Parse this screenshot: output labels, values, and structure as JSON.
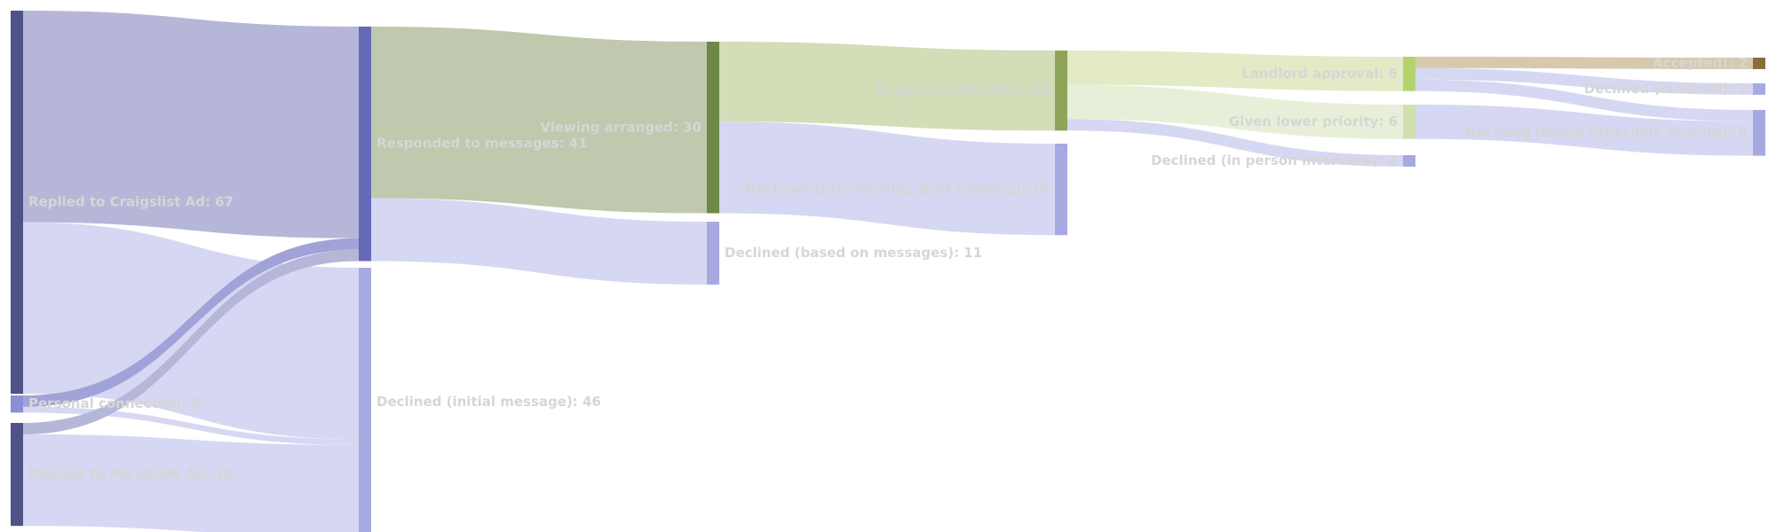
{
  "chart_data": {
    "type": "sankey",
    "nodes": [
      {
        "id": "craigslist",
        "label": "Replied to Craigslist Ad: 67",
        "color": "#4f5287"
      },
      {
        "id": "personal",
        "label": "Personal connection: 3",
        "color": "#8c8fd3"
      },
      {
        "id": "facebook",
        "label": "Replied to Facebook Ad: 18",
        "color": "#4f5287"
      },
      {
        "id": "responded",
        "label": "Responded to messages: 41",
        "color": "#6569b8"
      },
      {
        "id": "declined_initial",
        "label": "Declined (initial message): 46",
        "color": "#a7a9e1"
      },
      {
        "id": "viewing",
        "label": "Viewing arranged: 30",
        "color": "#6d8847"
      },
      {
        "id": "declined_messages",
        "label": "Declined (based on messages): 11",
        "color": "#a7a9e1"
      },
      {
        "id": "interview",
        "label": "In person interview: 14",
        "color": "#8ea559"
      },
      {
        "id": "declined_viewing",
        "label": "Declined (pre-viewing, post viewing): 16",
        "color": "#a7a9e1"
      },
      {
        "id": "landlord",
        "label": "Landlord approval: 6",
        "color": "#b4d36d"
      },
      {
        "id": "lower_priority",
        "label": "Given lower priority: 6",
        "color": "#cfe0ad"
      },
      {
        "id": "declined_interview",
        "label": "Declined (in person interview): 2",
        "color": "#a7a9e1"
      },
      {
        "id": "accepted",
        "label": "Accepted!: 2",
        "color": "#8a6d3b"
      },
      {
        "id": "declined_landlord",
        "label": "Declined (landlord): 2",
        "color": "#a7a9e1"
      },
      {
        "id": "declined_other",
        "label": "Declined (found other/left Toronto): 8",
        "color": "#a7a9e1"
      }
    ],
    "links": [
      {
        "source": "craigslist",
        "target": "responded",
        "value": 37,
        "color": "#b6b7d8"
      },
      {
        "source": "craigslist",
        "target": "declined_initial",
        "value": 30,
        "color": "#d6d7f2"
      },
      {
        "source": "personal",
        "target": "responded",
        "value": 2,
        "color": "#a1a3d8"
      },
      {
        "source": "personal",
        "target": "declined_initial",
        "value": 1,
        "color": "#d6d7f2"
      },
      {
        "source": "facebook",
        "target": "responded",
        "value": 2,
        "color": "#b6b7d8"
      },
      {
        "source": "facebook",
        "target": "declined_initial",
        "value": 16,
        "color": "#d6d7f2"
      },
      {
        "source": "responded",
        "target": "viewing",
        "value": 30,
        "color": "#c0c8ad"
      },
      {
        "source": "responded",
        "target": "declined_messages",
        "value": 11,
        "color": "#d6d7f2"
      },
      {
        "source": "viewing",
        "target": "interview",
        "value": 14,
        "color": "#d3ddb8"
      },
      {
        "source": "viewing",
        "target": "declined_viewing",
        "value": 16,
        "color": "#d6d7f2"
      },
      {
        "source": "interview",
        "target": "landlord",
        "value": 6,
        "color": "#e2ebc6"
      },
      {
        "source": "interview",
        "target": "lower_priority",
        "value": 6,
        "color": "#e8efd8"
      },
      {
        "source": "interview",
        "target": "declined_interview",
        "value": 2,
        "color": "#d6d7f2"
      },
      {
        "source": "landlord",
        "target": "accepted",
        "value": 2,
        "color": "#d6c9ad"
      },
      {
        "source": "landlord",
        "target": "declined_landlord",
        "value": 2,
        "color": "#d6d7f2"
      },
      {
        "source": "landlord",
        "target": "declined_other",
        "value": 2,
        "color": "#d6d7f2"
      },
      {
        "source": "lower_priority",
        "target": "declined_other",
        "value": 6,
        "color": "#d6d7f2"
      }
    ]
  }
}
